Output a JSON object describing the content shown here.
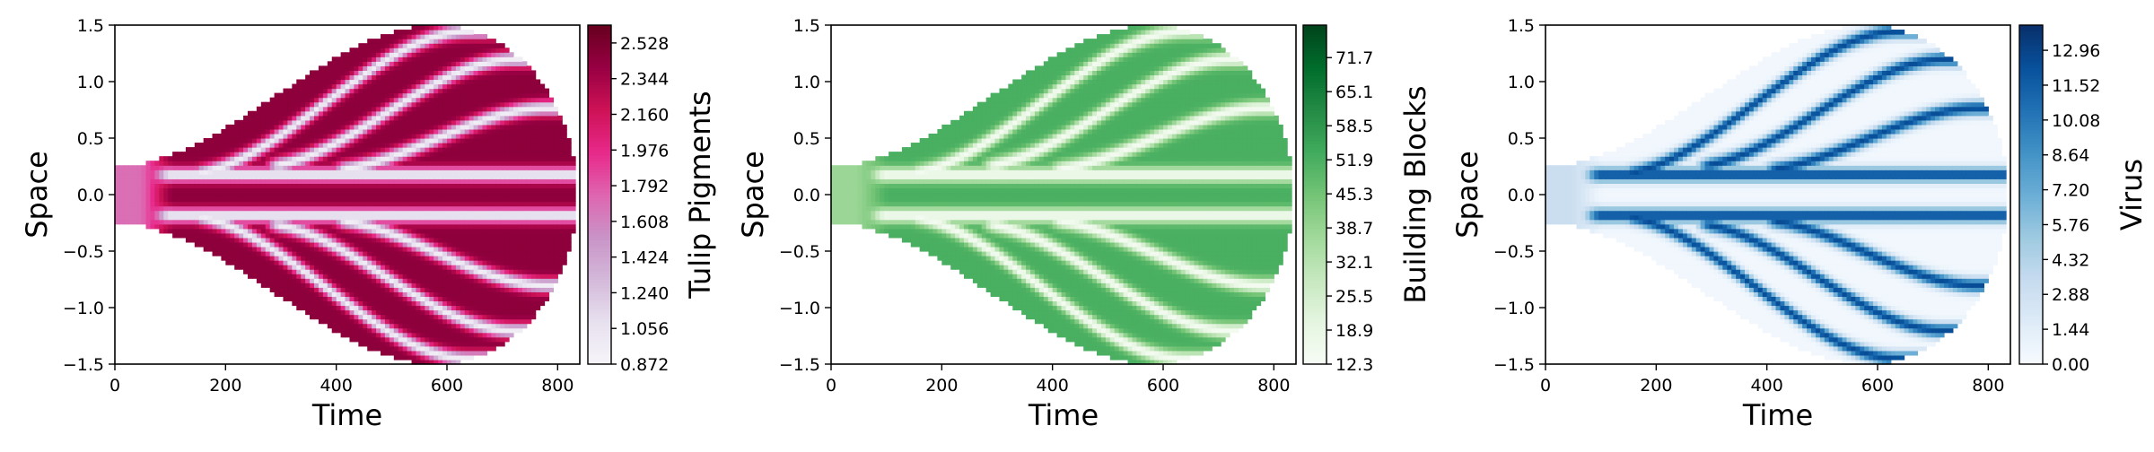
{
  "chart_data": [
    {
      "type": "heatmap",
      "title": "",
      "xlabel": "Time",
      "ylabel": "Space",
      "colorbar_label": "Tulip Pigments",
      "colormap": "PuRd",
      "colormap_stops": [
        "#f7f4f9",
        "#e7e1ef",
        "#d4b9da",
        "#c994c7",
        "#df65b0",
        "#e7298a",
        "#ce1256",
        "#980043",
        "#67001f"
      ],
      "xlim": [
        0,
        840
      ],
      "ylim": [
        -1.5,
        1.5
      ],
      "x_ticks": [
        0,
        200,
        400,
        600,
        800
      ],
      "x_tick_labels": [
        "0",
        "200",
        "400",
        "600",
        "800"
      ],
      "y_ticks": [
        -1.5,
        -1.0,
        -0.5,
        0.0,
        0.5,
        1.0,
        1.5
      ],
      "y_tick_labels": [
        "−1.5",
        "−1.0",
        "−0.5",
        "0.0",
        "0.5",
        "1.0",
        "1.5"
      ],
      "color_range": [
        0.872,
        2.62
      ],
      "colorbar_ticks": [
        0.872,
        1.056,
        1.24,
        1.424,
        1.608,
        1.792,
        1.976,
        2.16,
        2.344,
        2.528
      ],
      "colorbar_tick_labels": [
        "0.872",
        "1.056",
        "1.240",
        "1.424",
        "1.608",
        "1.792",
        "1.976",
        "2.160",
        "2.344",
        "2.528"
      ],
      "stripe_value": 0.95,
      "field_value": 2.45,
      "early_value": 1.7
    },
    {
      "type": "heatmap",
      "title": "",
      "xlabel": "Time",
      "ylabel": "Space",
      "colorbar_label": "Building Blocks",
      "colormap": "Greens",
      "colormap_stops": [
        "#f7fcf5",
        "#e5f5e0",
        "#c7e9c0",
        "#a1d99b",
        "#74c476",
        "#41ab5d",
        "#238b45",
        "#006d2c",
        "#00441b"
      ],
      "xlim": [
        0,
        840
      ],
      "ylim": [
        -1.5,
        1.5
      ],
      "x_ticks": [
        0,
        200,
        400,
        600,
        800
      ],
      "x_tick_labels": [
        "0",
        "200",
        "400",
        "600",
        "800"
      ],
      "y_ticks": [
        -1.5,
        -1.0,
        -0.5,
        0.0,
        0.5,
        1.0,
        1.5
      ],
      "y_tick_labels": [
        "−1.5",
        "−1.0",
        "−0.5",
        "0.0",
        "0.5",
        "1.0",
        "1.5"
      ],
      "color_range": [
        12.3,
        78.0
      ],
      "colorbar_ticks": [
        12.3,
        18.9,
        25.5,
        32.1,
        38.7,
        45.3,
        51.9,
        58.5,
        65.1,
        71.7
      ],
      "colorbar_tick_labels": [
        "12.3",
        "18.9",
        "25.5",
        "32.1",
        "38.7",
        "45.3",
        "51.9",
        "58.5",
        "65.1",
        "71.7"
      ],
      "stripe_value": 14,
      "field_value": 52,
      "early_value": 38
    },
    {
      "type": "heatmap",
      "title": "",
      "xlabel": "Time",
      "ylabel": "Space",
      "colorbar_label": "Virus",
      "colormap": "Blues",
      "colormap_stops": [
        "#f7fbff",
        "#deebf7",
        "#c6dbef",
        "#9ecae1",
        "#6baed6",
        "#4292c6",
        "#2171b5",
        "#08519c",
        "#08306b"
      ],
      "xlim": [
        0,
        840
      ],
      "ylim": [
        -1.5,
        1.5
      ],
      "x_ticks": [
        0,
        200,
        400,
        600,
        800
      ],
      "x_tick_labels": [
        "0",
        "200",
        "400",
        "600",
        "800"
      ],
      "y_ticks": [
        -1.5,
        -1.0,
        -0.5,
        0.0,
        0.5,
        1.0,
        1.5
      ],
      "y_tick_labels": [
        "−1.5",
        "−1.0",
        "−0.5",
        "0.0",
        "0.5",
        "1.0",
        "1.5"
      ],
      "color_range": [
        0.0,
        14.0
      ],
      "colorbar_ticks": [
        0.0,
        1.44,
        2.88,
        4.32,
        5.76,
        7.2,
        8.64,
        10.08,
        11.52,
        12.96
      ],
      "colorbar_tick_labels": [
        "0.00",
        "1.44",
        "2.88",
        "4.32",
        "5.76",
        "7.20",
        "8.64",
        "10.08",
        "11.52",
        "12.96"
      ],
      "stripe_value": 12.5,
      "field_value": 0.4,
      "early_value": 3.2
    }
  ]
}
